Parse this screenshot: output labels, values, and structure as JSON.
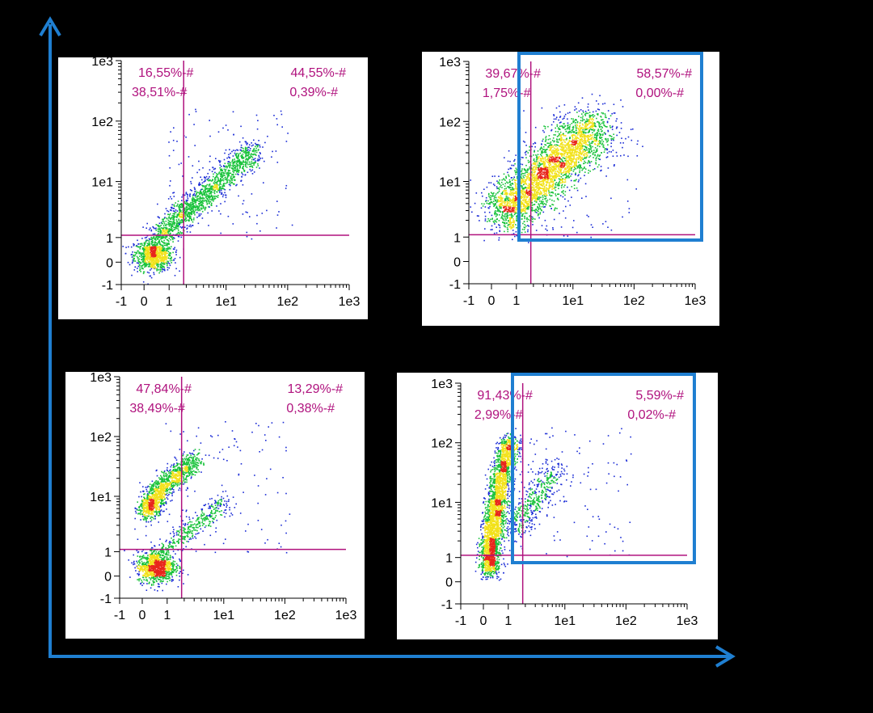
{
  "colors": {
    "background": "#000000",
    "panel": "#ffffff",
    "gate_line": "#b0127e",
    "quad_text": "#b0127e",
    "highlight_box": "#1f7fd1",
    "outer_axes": "#1f7fd1",
    "density_low": "#1a2bd6",
    "density_mid": "#18c23a",
    "density_high": "#f2e21a",
    "density_peak": "#e8261c"
  },
  "chart_data": [
    {
      "type": "scatter",
      "scale": "biexponential",
      "x_ticks": [
        "-1",
        "0",
        "1",
        "1e1",
        "1e2",
        "1e3"
      ],
      "y_ticks": [
        "1e3",
        "1e2",
        "1e1",
        "1",
        "0",
        "-1"
      ],
      "gate": {
        "x": 1.8,
        "y": 1.1
      },
      "highlight": false,
      "quadrants": {
        "upper_left": [
          "16,55%-#",
          "38,51%-#"
        ],
        "upper_right": [
          "44,55%-#",
          "0,39%-#"
        ]
      },
      "populations": [
        {
          "kind": "blob",
          "cx": 0.35,
          "cy": 0.3,
          "sx": 0.12,
          "sy": 0.1,
          "n": 900
        },
        {
          "kind": "line",
          "x0": 0.6,
          "y0": 1.0,
          "x1": 28,
          "y1": 35,
          "spread": 0.16,
          "n": 1500
        }
      ]
    },
    {
      "type": "scatter",
      "scale": "biexponential",
      "x_ticks": [
        "-1",
        "0",
        "1",
        "1e1",
        "1e2",
        "1e3"
      ],
      "y_ticks": [
        "1e3",
        "1e2",
        "1e1",
        "1",
        "0",
        "-1"
      ],
      "gate": {
        "x": 1.8,
        "y": 1.1
      },
      "highlight": true,
      "quadrants": {
        "upper_left": [
          "39,67%-#",
          "1,75%-#"
        ],
        "upper_right": [
          "58,57%-#",
          "0,00%-#"
        ]
      },
      "populations": [
        {
          "kind": "line",
          "x0": 0.5,
          "y0": 2.5,
          "x1": 25,
          "y1": 90,
          "spread": 0.32,
          "n": 3200
        }
      ]
    },
    {
      "type": "scatter",
      "scale": "biexponential",
      "x_ticks": [
        "-1",
        "0",
        "1",
        "1e1",
        "1e2",
        "1e3"
      ],
      "y_ticks": [
        "1e3",
        "1e2",
        "1e1",
        "1",
        "0",
        "-1"
      ],
      "gate": {
        "x": 1.8,
        "y": 1.1
      },
      "highlight": false,
      "quadrants": {
        "upper_left": [
          "47,84%-#",
          "38,49%-#"
        ],
        "upper_right": [
          "13,29%-#",
          "0,38%-#"
        ]
      },
      "populations": [
        {
          "kind": "blob",
          "cx": 0.55,
          "cy": 0.4,
          "sx": 0.12,
          "sy": 0.1,
          "n": 1000
        },
        {
          "kind": "line",
          "x0": 0.2,
          "y0": 5,
          "x1": 3,
          "y1": 40,
          "spread": 0.14,
          "n": 1300
        },
        {
          "kind": "line",
          "x0": 0.6,
          "y0": 0.8,
          "x1": 10,
          "y1": 8,
          "spread": 0.12,
          "n": 400
        }
      ]
    },
    {
      "type": "scatter",
      "scale": "biexponential",
      "x_ticks": [
        "-1",
        "0",
        "1",
        "1e1",
        "1e2",
        "1e3"
      ],
      "y_ticks": [
        "1e3",
        "1e2",
        "1e1",
        "1",
        "0",
        "-1"
      ],
      "gate": {
        "x": 1.8,
        "y": 1.1
      },
      "highlight": true,
      "quadrants": {
        "upper_left": [
          "91,43%-#",
          "2,99%-#"
        ],
        "upper_right": [
          "5,59%-#",
          "0,02%-#"
        ]
      },
      "populations": [
        {
          "kind": "line",
          "x0": 0.2,
          "y0": 0.5,
          "x1": 1.1,
          "y1": 110,
          "spread": 0.13,
          "n": 2800
        },
        {
          "kind": "line",
          "x0": 1.2,
          "y0": 3,
          "x1": 6,
          "y1": 35,
          "spread": 0.18,
          "n": 450
        }
      ]
    }
  ]
}
